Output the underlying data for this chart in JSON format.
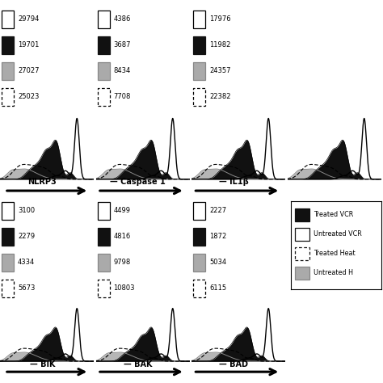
{
  "top_panels": [
    {
      "label": "NLRP3",
      "values": [
        "29794",
        "19701",
        "27027",
        "25023"
      ]
    },
    {
      "label": "Caspase 1",
      "values": [
        "4386",
        "3687",
        "8434",
        "7708"
      ]
    },
    {
      "label": "IL1β",
      "values": [
        "17976",
        "11982",
        "24357",
        "22382"
      ]
    },
    {
      "label": "",
      "values": [
        "",
        "",
        "",
        ""
      ]
    }
  ],
  "bot_panels": [
    {
      "label": "BIK",
      "values": [
        "3100",
        "2279",
        "4334",
        "5673"
      ]
    },
    {
      "label": "BAK",
      "values": [
        "4499",
        "4816",
        "9798",
        "10803"
      ]
    },
    {
      "label": "BAD",
      "values": [
        "2227",
        "1872",
        "5034",
        "6115"
      ]
    }
  ],
  "legend_entries": [
    {
      "label": "Treated VCR",
      "fc": "#111111",
      "ec": "#111111",
      "ls": "solid"
    },
    {
      "label": "Untreated VCR",
      "fc": "white",
      "ec": "#111111",
      "ls": "solid"
    },
    {
      "label": "Treated Heat",
      "fc": "white",
      "ec": "#111111",
      "ls": "dashed"
    },
    {
      "label": "Untreated H",
      "fc": "#aaaaaa",
      "ec": "#888888",
      "ls": "solid"
    }
  ],
  "box_styles": [
    {
      "fc": "white",
      "ec": "black",
      "ls": "solid"
    },
    {
      "fc": "#111111",
      "ec": "#111111",
      "ls": "solid"
    },
    {
      "fc": "#aaaaaa",
      "ec": "#888888",
      "ls": "solid"
    },
    {
      "fc": "white",
      "ec": "black",
      "ls": "dashed"
    }
  ]
}
